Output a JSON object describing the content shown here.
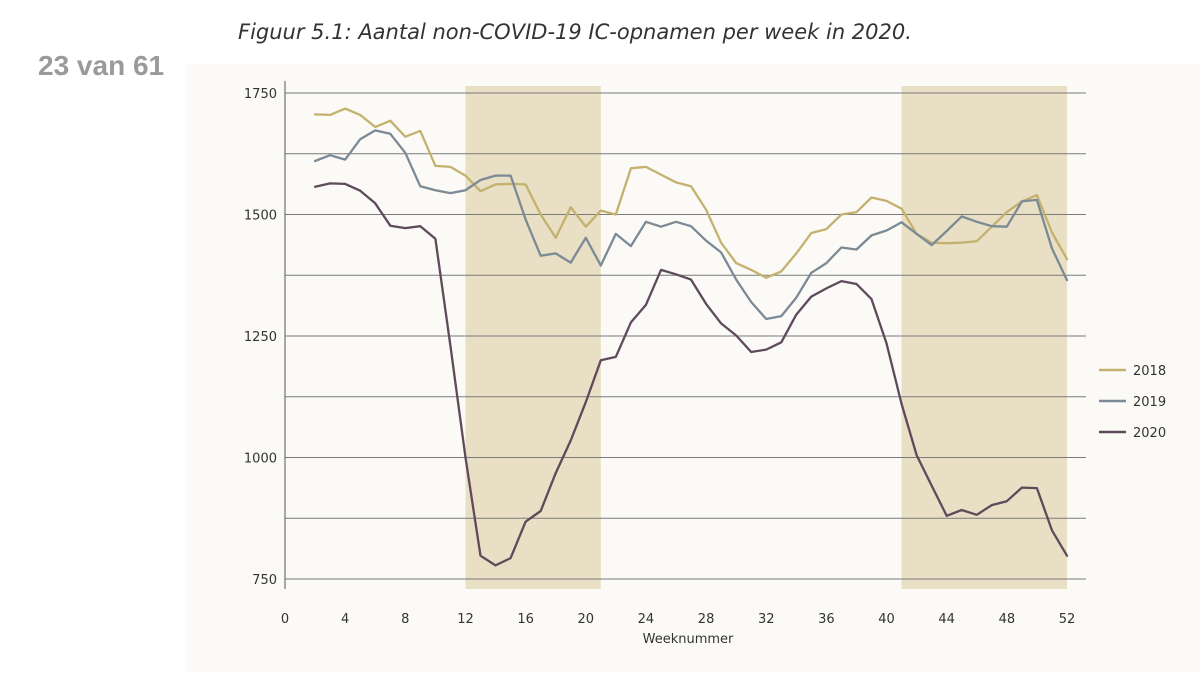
{
  "page": {
    "counter": "23 van 61"
  },
  "caption": "Figuur 5.1: Aantal non-COVID-19 IC-opnamen per week in 2020.",
  "chart_data": {
    "type": "line",
    "title": "Figuur 5.1: Aantal non-COVID-19 IC-opnamen per week in 2020.",
    "xlabel": "Weeknummer",
    "ylabel": "",
    "xlim": [
      0,
      52
    ],
    "ylim": [
      750,
      1750
    ],
    "x_ticks": [
      0,
      4,
      8,
      12,
      16,
      20,
      24,
      28,
      32,
      36,
      40,
      44,
      48,
      52
    ],
    "y_ticks": [
      750,
      1000,
      1250,
      1500,
      1750
    ],
    "grid": "horizontal",
    "legend_position": "right",
    "shaded_weeks": [
      [
        12,
        21
      ],
      [
        41,
        52
      ]
    ],
    "shade_color": "#e8dfc4",
    "x": [
      2,
      3,
      4,
      5,
      6,
      7,
      8,
      9,
      10,
      11,
      12,
      13,
      14,
      15,
      16,
      17,
      18,
      19,
      20,
      21,
      22,
      23,
      24,
      25,
      26,
      27,
      28,
      29,
      30,
      31,
      32,
      33,
      34,
      35,
      36,
      37,
      38,
      39,
      40,
      41,
      42,
      43,
      44,
      45,
      46,
      47,
      48,
      49,
      50,
      51,
      52
    ],
    "series": [
      {
        "name": "2018",
        "color": "#c4b16f",
        "values": [
          1706,
          1705,
          1718,
          1705,
          1680,
          1693,
          1660,
          1672,
          1600,
          1598,
          1580,
          1548,
          1562,
          1563,
          1562,
          1500,
          1452,
          1515,
          1475,
          1508,
          1500,
          1595,
          1598,
          1582,
          1566,
          1558,
          1510,
          1442,
          1400,
          1386,
          1370,
          1383,
          1420,
          1462,
          1470,
          1500,
          1505,
          1535,
          1528,
          1512,
          1460,
          1442,
          1441,
          1442,
          1445,
          1475,
          1505,
          1527,
          1540,
          1463,
          1408
        ]
      },
      {
        "name": "2019",
        "color": "#7b8a95",
        "values": [
          1610,
          1622,
          1613,
          1655,
          1673,
          1666,
          1627,
          1558,
          1550,
          1544,
          1550,
          1571,
          1580,
          1580,
          1490,
          1415,
          1420,
          1401,
          1452,
          1395,
          1460,
          1435,
          1485,
          1475,
          1485,
          1476,
          1446,
          1422,
          1366,
          1320,
          1285,
          1291,
          1329,
          1380,
          1400,
          1432,
          1428,
          1457,
          1467,
          1484,
          1460,
          1437,
          1466,
          1496,
          1485,
          1476,
          1475,
          1527,
          1530,
          1430,
          1365
        ]
      },
      {
        "name": "2020",
        "color": "#5e4a5b",
        "values": [
          1557,
          1564,
          1563,
          1549,
          1523,
          1477,
          1472,
          1476,
          1450,
          1230,
          1000,
          798,
          778,
          793,
          868,
          890,
          968,
          1035,
          1114,
          1200,
          1207,
          1278,
          1314,
          1386,
          1377,
          1366,
          1316,
          1276,
          1251,
          1217,
          1222,
          1237,
          1294,
          1331,
          1348,
          1363,
          1357,
          1326,
          1235,
          1110,
          1005,
          942,
          880,
          892,
          882,
          902,
          910,
          938,
          937,
          850,
          798
        ]
      }
    ]
  },
  "legend": {
    "items": [
      {
        "label": "2018",
        "color": "#c4b16f"
      },
      {
        "label": "2019",
        "color": "#7b8a95"
      },
      {
        "label": "2020",
        "color": "#5e4a5b"
      }
    ]
  }
}
